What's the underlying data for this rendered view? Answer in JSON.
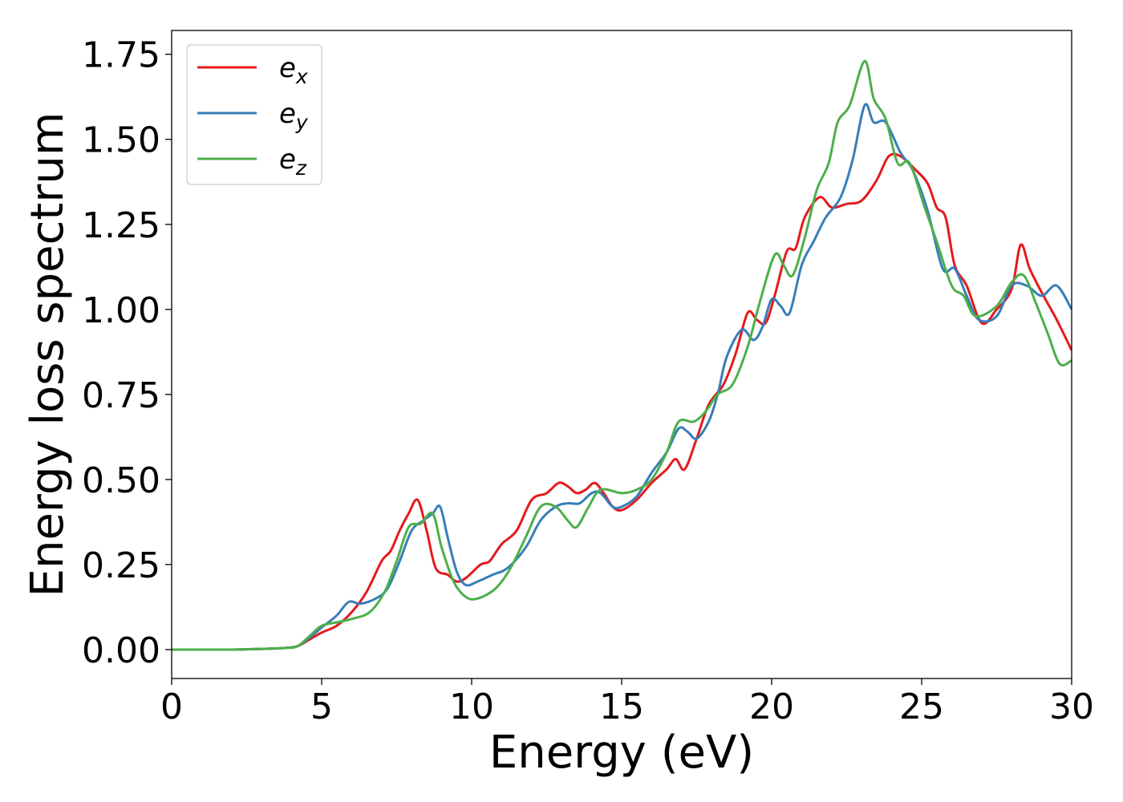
{
  "chart_data": {
    "type": "line",
    "xlabel": "Energy (eV)",
    "ylabel": "Energy loss spectrum",
    "xlim": [
      0,
      30
    ],
    "ylim": [
      -0.085,
      1.82
    ],
    "xticks": [
      0,
      5,
      10,
      15,
      20,
      25,
      30
    ],
    "xtick_labels": [
      "0",
      "5",
      "10",
      "15",
      "20",
      "25",
      "30"
    ],
    "yticks": [
      0.0,
      0.25,
      0.5,
      0.75,
      1.0,
      1.25,
      1.5,
      1.75
    ],
    "ytick_labels": [
      "0.00",
      "0.25",
      "0.50",
      "0.75",
      "1.00",
      "1.25",
      "1.50",
      "1.75"
    ],
    "grid": false,
    "legend_position": "top-left",
    "series": [
      {
        "name": "e",
        "subscript": "x",
        "color": "#e41a1c",
        "points": [
          [
            0,
            0.0
          ],
          [
            1,
            0.0
          ],
          [
            2,
            0.0
          ],
          [
            3,
            0.002
          ],
          [
            3.8,
            0.005
          ],
          [
            4.2,
            0.01
          ],
          [
            4.6,
            0.03
          ],
          [
            5,
            0.05
          ],
          [
            5.5,
            0.07
          ],
          [
            6,
            0.11
          ],
          [
            6.5,
            0.17
          ],
          [
            7,
            0.26
          ],
          [
            7.3,
            0.29
          ],
          [
            7.6,
            0.35
          ],
          [
            7.9,
            0.4
          ],
          [
            8.2,
            0.44
          ],
          [
            8.5,
            0.35
          ],
          [
            8.8,
            0.24
          ],
          [
            9.2,
            0.22
          ],
          [
            9.5,
            0.2
          ],
          [
            9.8,
            0.21
          ],
          [
            10.3,
            0.25
          ],
          [
            10.6,
            0.26
          ],
          [
            11,
            0.31
          ],
          [
            11.5,
            0.35
          ],
          [
            12,
            0.44
          ],
          [
            12.5,
            0.46
          ],
          [
            12.9,
            0.49
          ],
          [
            13.2,
            0.48
          ],
          [
            13.5,
            0.46
          ],
          [
            13.8,
            0.47
          ],
          [
            14.1,
            0.49
          ],
          [
            14.4,
            0.46
          ],
          [
            14.7,
            0.42
          ],
          [
            15,
            0.41
          ],
          [
            15.5,
            0.44
          ],
          [
            16,
            0.49
          ],
          [
            16.5,
            0.53
          ],
          [
            16.8,
            0.56
          ],
          [
            17.1,
            0.53
          ],
          [
            17.5,
            0.62
          ],
          [
            17.9,
            0.72
          ],
          [
            18.4,
            0.78
          ],
          [
            18.8,
            0.87
          ],
          [
            19.2,
            0.99
          ],
          [
            19.5,
            0.97
          ],
          [
            19.8,
            0.96
          ],
          [
            20.1,
            1.04
          ],
          [
            20.5,
            1.17
          ],
          [
            20.8,
            1.18
          ],
          [
            21.1,
            1.27
          ],
          [
            21.6,
            1.33
          ],
          [
            22,
            1.3
          ],
          [
            22.5,
            1.31
          ],
          [
            23,
            1.32
          ],
          [
            23.5,
            1.38
          ],
          [
            23.9,
            1.45
          ],
          [
            24.3,
            1.45
          ],
          [
            24.8,
            1.41
          ],
          [
            25.2,
            1.37
          ],
          [
            25.5,
            1.3
          ],
          [
            25.8,
            1.27
          ],
          [
            26.1,
            1.13
          ],
          [
            26.5,
            1.07
          ],
          [
            27,
            0.96
          ],
          [
            27.5,
            1.0
          ],
          [
            28,
            1.06
          ],
          [
            28.3,
            1.19
          ],
          [
            28.6,
            1.12
          ],
          [
            29,
            1.05
          ],
          [
            29.5,
            0.97
          ],
          [
            30,
            0.88
          ]
        ]
      },
      {
        "name": "e",
        "subscript": "y",
        "color": "#377eb8",
        "points": [
          [
            0,
            0.0
          ],
          [
            1,
            0.0
          ],
          [
            2,
            0.0
          ],
          [
            3,
            0.002
          ],
          [
            3.8,
            0.005
          ],
          [
            4.2,
            0.01
          ],
          [
            4.6,
            0.035
          ],
          [
            5,
            0.065
          ],
          [
            5.5,
            0.1
          ],
          [
            5.9,
            0.14
          ],
          [
            6.3,
            0.135
          ],
          [
            6.8,
            0.15
          ],
          [
            7.2,
            0.18
          ],
          [
            7.6,
            0.26
          ],
          [
            8,
            0.35
          ],
          [
            8.4,
            0.38
          ],
          [
            8.7,
            0.4
          ],
          [
            8.95,
            0.42
          ],
          [
            9.2,
            0.33
          ],
          [
            9.5,
            0.23
          ],
          [
            9.8,
            0.19
          ],
          [
            10.2,
            0.2
          ],
          [
            10.7,
            0.22
          ],
          [
            11.2,
            0.24
          ],
          [
            11.8,
            0.3
          ],
          [
            12.3,
            0.38
          ],
          [
            12.8,
            0.42
          ],
          [
            13.2,
            0.43
          ],
          [
            13.6,
            0.43
          ],
          [
            14,
            0.46
          ],
          [
            14.3,
            0.46
          ],
          [
            14.7,
            0.42
          ],
          [
            15,
            0.42
          ],
          [
            15.5,
            0.45
          ],
          [
            16,
            0.52
          ],
          [
            16.5,
            0.58
          ],
          [
            16.9,
            0.65
          ],
          [
            17.2,
            0.64
          ],
          [
            17.5,
            0.62
          ],
          [
            17.9,
            0.67
          ],
          [
            18.2,
            0.75
          ],
          [
            18.5,
            0.86
          ],
          [
            19,
            0.94
          ],
          [
            19.4,
            0.91
          ],
          [
            19.7,
            0.95
          ],
          [
            20,
            1.03
          ],
          [
            20.3,
            1.01
          ],
          [
            20.6,
            0.99
          ],
          [
            21,
            1.13
          ],
          [
            21.4,
            1.2
          ],
          [
            21.8,
            1.27
          ],
          [
            22.3,
            1.33
          ],
          [
            22.7,
            1.44
          ],
          [
            23.1,
            1.6
          ],
          [
            23.4,
            1.55
          ],
          [
            23.8,
            1.55
          ],
          [
            24.3,
            1.46
          ],
          [
            24.7,
            1.41
          ],
          [
            25.2,
            1.29
          ],
          [
            25.7,
            1.12
          ],
          [
            26.1,
            1.12
          ],
          [
            26.5,
            1.04
          ],
          [
            26.9,
            0.97
          ],
          [
            27.5,
            0.98
          ],
          [
            28,
            1.07
          ],
          [
            28.5,
            1.07
          ],
          [
            29,
            1.04
          ],
          [
            29.5,
            1.07
          ],
          [
            30,
            1.0
          ]
        ]
      },
      {
        "name": "e",
        "subscript": "z",
        "color": "#4daf4a",
        "points": [
          [
            0,
            0.0
          ],
          [
            1,
            0.0
          ],
          [
            2,
            0.0
          ],
          [
            3,
            0.002
          ],
          [
            3.8,
            0.005
          ],
          [
            4.2,
            0.01
          ],
          [
            4.6,
            0.04
          ],
          [
            5,
            0.07
          ],
          [
            5.5,
            0.08
          ],
          [
            6,
            0.09
          ],
          [
            6.6,
            0.11
          ],
          [
            7.1,
            0.17
          ],
          [
            7.5,
            0.26
          ],
          [
            7.9,
            0.36
          ],
          [
            8.3,
            0.37
          ],
          [
            8.7,
            0.4
          ],
          [
            9,
            0.3
          ],
          [
            9.4,
            0.2
          ],
          [
            9.8,
            0.155
          ],
          [
            10.2,
            0.15
          ],
          [
            10.8,
            0.18
          ],
          [
            11.3,
            0.24
          ],
          [
            11.8,
            0.33
          ],
          [
            12.3,
            0.42
          ],
          [
            12.8,
            0.42
          ],
          [
            13.2,
            0.38
          ],
          [
            13.5,
            0.36
          ],
          [
            13.9,
            0.42
          ],
          [
            14.3,
            0.47
          ],
          [
            15,
            0.46
          ],
          [
            15.5,
            0.47
          ],
          [
            16,
            0.5
          ],
          [
            16.5,
            0.58
          ],
          [
            16.9,
            0.67
          ],
          [
            17.4,
            0.67
          ],
          [
            17.8,
            0.7
          ],
          [
            18.2,
            0.75
          ],
          [
            18.7,
            0.78
          ],
          [
            19.2,
            0.89
          ],
          [
            19.6,
            1.02
          ],
          [
            20.1,
            1.16
          ],
          [
            20.4,
            1.13
          ],
          [
            20.7,
            1.1
          ],
          [
            21.1,
            1.21
          ],
          [
            21.5,
            1.35
          ],
          [
            21.9,
            1.43
          ],
          [
            22.2,
            1.55
          ],
          [
            22.6,
            1.6
          ],
          [
            23.1,
            1.73
          ],
          [
            23.4,
            1.62
          ],
          [
            23.8,
            1.56
          ],
          [
            24.2,
            1.43
          ],
          [
            24.6,
            1.43
          ],
          [
            25.1,
            1.3
          ],
          [
            25.5,
            1.2
          ],
          [
            26,
            1.07
          ],
          [
            26.4,
            1.04
          ],
          [
            26.8,
            0.98
          ],
          [
            27.5,
            1.01
          ],
          [
            28,
            1.08
          ],
          [
            28.4,
            1.1
          ],
          [
            28.8,
            1.02
          ],
          [
            29.2,
            0.93
          ],
          [
            29.6,
            0.84
          ],
          [
            30,
            0.85
          ]
        ]
      }
    ]
  }
}
